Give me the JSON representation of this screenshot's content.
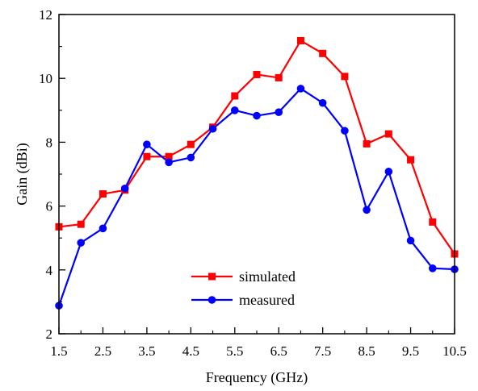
{
  "chart_data": {
    "type": "line",
    "xlabel": "Frequency (GHz)",
    "ylabel": "Gain (dBi)",
    "xlim": [
      1.5,
      10.5
    ],
    "ylim": [
      2,
      12
    ],
    "x_ticks": [
      "1.5",
      "2.5",
      "3.5",
      "4.5",
      "5.5",
      "6.5",
      "7.5",
      "8.5",
      "9.5",
      "10.5"
    ],
    "y_ticks": [
      "2",
      "4",
      "6",
      "8",
      "10",
      "12"
    ],
    "x": [
      1.5,
      2.0,
      2.5,
      3.0,
      3.5,
      4.0,
      4.5,
      5.0,
      5.5,
      6.0,
      6.5,
      7.0,
      7.5,
      8.0,
      8.5,
      9.0,
      9.5,
      10.0,
      10.5
    ],
    "series": [
      {
        "name": "simulated",
        "color": "#ff0000",
        "marker": "square",
        "values": [
          5.35,
          5.43,
          6.38,
          6.5,
          7.55,
          7.55,
          7.93,
          8.47,
          9.45,
          10.12,
          10.02,
          11.18,
          10.78,
          10.06,
          7.95,
          8.26,
          7.45,
          5.5,
          4.5
        ]
      },
      {
        "name": "measured",
        "color": "#0000ff",
        "marker": "circle",
        "values": [
          2.88,
          4.85,
          5.3,
          6.55,
          7.93,
          7.37,
          7.52,
          8.42,
          9.0,
          8.83,
          8.94,
          9.68,
          9.23,
          8.36,
          5.88,
          7.08,
          4.92,
          4.05,
          4.02
        ]
      }
    ],
    "legend_position": "bottom-center",
    "grid": false
  }
}
